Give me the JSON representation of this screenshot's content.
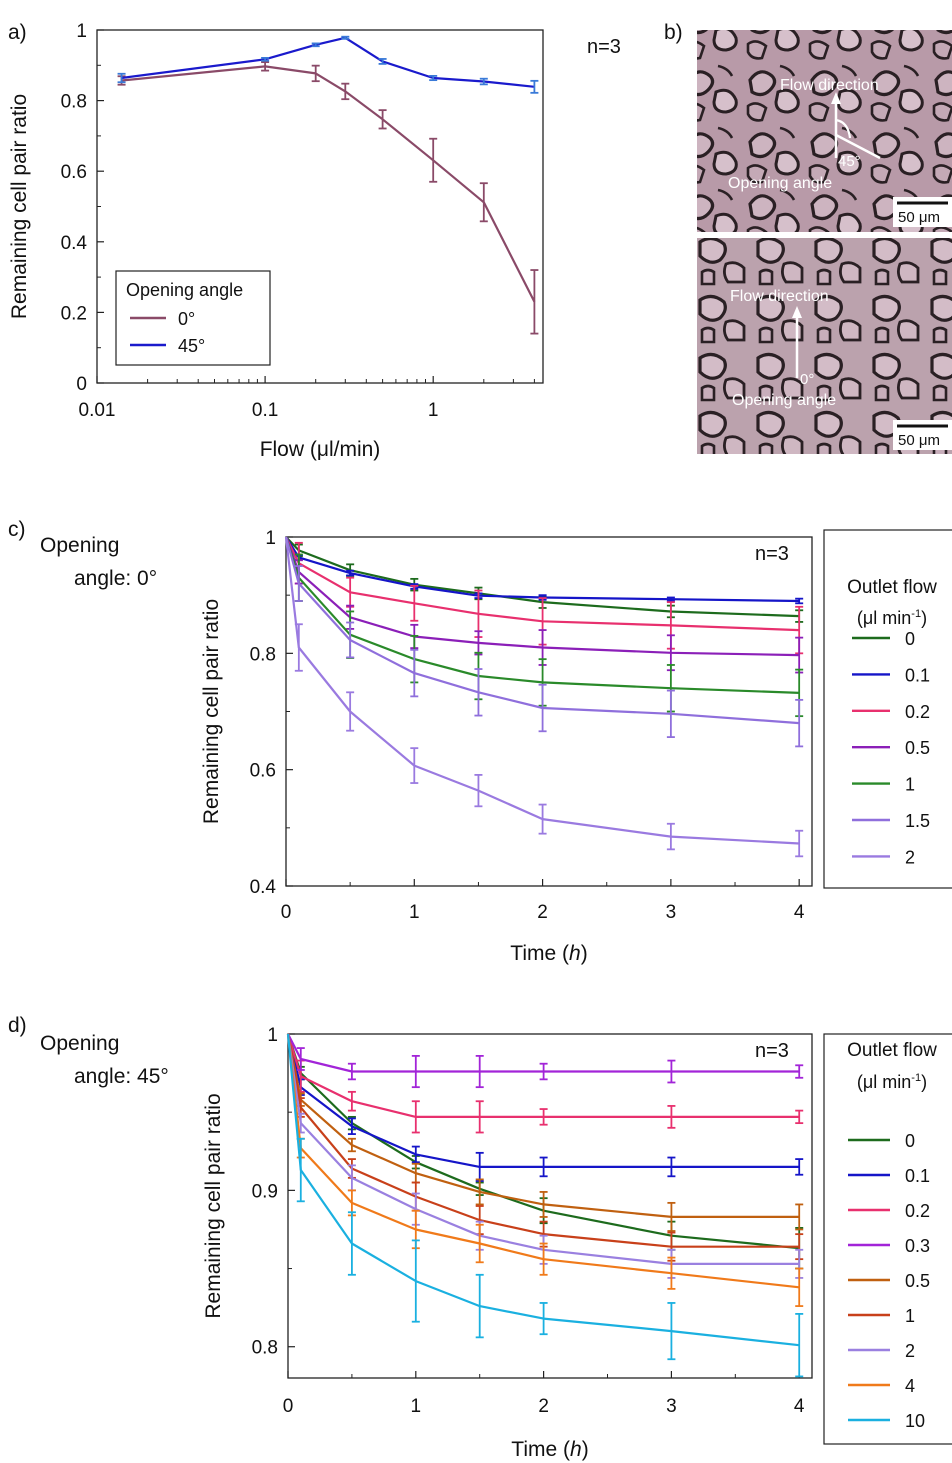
{
  "figure": {
    "panel_labels": [
      "a)",
      "b)",
      "c)",
      "d)"
    ],
    "colors": {
      "a_0deg": "#8a4a68",
      "a_45deg": "#1a1acc",
      "series_0": "#1d6b1d",
      "series_0_1": "#1515c8",
      "series_0_2": "#e8306e",
      "series_0_3": "#a224d8",
      "series_0_5c": "#8b1fb8",
      "series_1c": "#2a8a2a",
      "series_1_5": "#8f6fdc",
      "series_2c": "#9a7ae0",
      "series_0_5d": "#c06010",
      "series_1d": "#c8401a",
      "series_2d": "#9a80e0",
      "series_4": "#f07a1a",
      "series_10": "#1ab0e0",
      "errbar_a45": "#3a7ad8"
    }
  },
  "panel_b": {
    "top": {
      "flow_label": "Flow direction",
      "angle_label": "45°",
      "opening_label": "Opening angle",
      "scale_label": "50 μm"
    },
    "bottom": {
      "flow_label": "Flow direction",
      "angle_label": "0°",
      "opening_label": "Opening angle",
      "scale_label": "50 μm"
    }
  },
  "chart_data": [
    {
      "id": "a",
      "type": "line",
      "xlabel": "Flow (μl/min)",
      "ylabel": "Remaining cell pair ratio",
      "xscale": "log",
      "xlim": [
        0.01,
        4.5
      ],
      "ylim": [
        0,
        1
      ],
      "xticks": [
        0.01,
        0.1,
        1
      ],
      "xtick_labels": [
        "0.01",
        "0.1",
        "1"
      ],
      "yticks": [
        0,
        0.2,
        0.4,
        0.6,
        0.8,
        1
      ],
      "ytick_labels": [
        "0",
        "0.2",
        "0.4",
        "0.6",
        "0.8",
        "1"
      ],
      "annotation": "n=3",
      "legend_title": "Opening angle",
      "legend_position": "bottom-left",
      "series": [
        {
          "name": "0°",
          "x": [
            0.014,
            0.1,
            0.2,
            0.3,
            0.5,
            1,
            2,
            4
          ],
          "y": [
            0.857,
            0.897,
            0.877,
            0.826,
            0.747,
            0.631,
            0.512,
            0.23
          ],
          "err": [
            0.012,
            0.012,
            0.022,
            0.022,
            0.026,
            0.061,
            0.054,
            0.09
          ]
        },
        {
          "name": "45°",
          "x": [
            0.014,
            0.1,
            0.2,
            0.3,
            0.5,
            1,
            2,
            4
          ],
          "y": [
            0.864,
            0.917,
            0.958,
            0.978,
            0.911,
            0.864,
            0.854,
            0.839
          ],
          "err": [
            0.012,
            0.004,
            0.004,
            0.003,
            0.007,
            0.006,
            0.008,
            0.017
          ]
        }
      ]
    },
    {
      "id": "c",
      "type": "line",
      "side_label": "Opening\nangle: 0°",
      "xlabel": "Time",
      "xlabel_unit": "h",
      "ylabel": "Remaining cell pair ratio",
      "xlim": [
        0,
        4.1
      ],
      "ylim": [
        0.4,
        1
      ],
      "xticks": [
        0,
        1,
        2,
        3,
        4
      ],
      "xtick_labels": [
        "0",
        "1",
        "2",
        "3",
        "4"
      ],
      "yticks": [
        0.4,
        0.6,
        0.8,
        1
      ],
      "ytick_labels": [
        "0.4",
        "0.6",
        "0.8",
        "1"
      ],
      "annotation": "n=3",
      "legend_title": "Outlet flow",
      "legend_unit": "μl min",
      "legend_position": "right",
      "x": [
        0,
        0.1,
        0.5,
        1,
        1.5,
        2,
        3,
        4
      ],
      "series": [
        {
          "name": "0",
          "y": [
            1,
            0.977,
            0.943,
            0.918,
            0.903,
            0.888,
            0.872,
            0.864
          ],
          "err": [
            0,
            0.01,
            0.01,
            0.01,
            0.01,
            0.01,
            0.01,
            0.01
          ]
        },
        {
          "name": "0.1",
          "y": [
            1,
            0.965,
            0.938,
            0.915,
            0.899,
            0.896,
            0.893,
            0.89
          ],
          "err": [
            0,
            0.004,
            0.004,
            0.004,
            0.004,
            0.004,
            0.003,
            0.004
          ]
        },
        {
          "name": "0.2",
          "y": [
            1,
            0.955,
            0.905,
            0.886,
            0.868,
            0.855,
            0.848,
            0.84
          ],
          "err": [
            0,
            0.035,
            0.025,
            0.03,
            0.04,
            0.04,
            0.04,
            0.04
          ]
        },
        {
          "name": "0.5",
          "y": [
            1,
            0.94,
            0.862,
            0.829,
            0.818,
            0.81,
            0.801,
            0.797
          ],
          "err": [
            0,
            0.02,
            0.02,
            0.02,
            0.02,
            0.03,
            0.03,
            0.03
          ]
        },
        {
          "name": "1",
          "y": [
            1,
            0.93,
            0.832,
            0.79,
            0.761,
            0.75,
            0.74,
            0.732
          ],
          "err": [
            0,
            0.04,
            0.04,
            0.04,
            0.04,
            0.04,
            0.04,
            0.04
          ]
        },
        {
          "name": "1.5",
          "y": [
            1,
            0.92,
            0.823,
            0.766,
            0.733,
            0.706,
            0.696,
            0.68
          ],
          "err": [
            0,
            0.03,
            0.03,
            0.04,
            0.04,
            0.04,
            0.04,
            0.04
          ]
        },
        {
          "name": "2",
          "y": [
            1,
            0.81,
            0.7,
            0.607,
            0.564,
            0.515,
            0.485,
            0.473
          ],
          "err": [
            0,
            0.04,
            0.033,
            0.03,
            0.027,
            0.025,
            0.022,
            0.022
          ]
        }
      ]
    },
    {
      "id": "d",
      "type": "line",
      "side_label": "Opening\nangle: 45°",
      "xlabel": "Time",
      "xlabel_unit": "h",
      "ylabel": "Remaining cell pair ratio",
      "xlim": [
        0,
        4.1
      ],
      "ylim": [
        0.78,
        1
      ],
      "xticks": [
        0,
        1,
        2,
        3,
        4
      ],
      "xtick_labels": [
        "0",
        "1",
        "2",
        "3",
        "4"
      ],
      "yticks": [
        0.8,
        0.9,
        1
      ],
      "ytick_labels": [
        "0.8",
        "0.9",
        "1"
      ],
      "annotation": "n=3",
      "legend_title": "Outlet flow",
      "legend_unit": "μl min",
      "legend_position": "right",
      "x": [
        0,
        0.1,
        0.5,
        1,
        1.5,
        2,
        3,
        4
      ],
      "series": [
        {
          "name": "0",
          "y": [
            1,
            0.975,
            0.943,
            0.918,
            0.901,
            0.887,
            0.871,
            0.863
          ],
          "err": [
            0,
            0.004,
            0.004,
            0.004,
            0.004,
            0.008,
            0.009,
            0.013
          ]
        },
        {
          "name": "0.1",
          "y": [
            1,
            0.966,
            0.941,
            0.923,
            0.915,
            0.915,
            0.915,
            0.915
          ],
          "err": [
            0,
            0.005,
            0.005,
            0.005,
            0.009,
            0.006,
            0.006,
            0.005
          ]
        },
        {
          "name": "0.2",
          "y": [
            1,
            0.973,
            0.957,
            0.947,
            0.947,
            0.947,
            0.947,
            0.947
          ],
          "err": [
            0,
            0.01,
            0.006,
            0.01,
            0.01,
            0.005,
            0.007,
            0.004
          ]
        },
        {
          "name": "0.3",
          "y": [
            1,
            0.984,
            0.976,
            0.976,
            0.976,
            0.976,
            0.976,
            0.976
          ],
          "err": [
            0,
            0.007,
            0.005,
            0.01,
            0.01,
            0.005,
            0.007,
            0.004
          ]
        },
        {
          "name": "0.5",
          "y": [
            1,
            0.958,
            0.929,
            0.911,
            0.899,
            0.891,
            0.883,
            0.883
          ],
          "err": [
            0,
            0.004,
            0.004,
            0.006,
            0.008,
            0.008,
            0.009,
            0.008
          ]
        },
        {
          "name": "1",
          "y": [
            1,
            0.953,
            0.914,
            0.896,
            0.881,
            0.872,
            0.864,
            0.864
          ],
          "err": [
            0,
            0.006,
            0.006,
            0.009,
            0.009,
            0.008,
            0.009,
            0.008
          ]
        },
        {
          "name": "2",
          "y": [
            1,
            0.943,
            0.908,
            0.888,
            0.871,
            0.862,
            0.853,
            0.853
          ],
          "err": [
            0,
            0.006,
            0.008,
            0.01,
            0.009,
            0.009,
            0.009,
            0.009
          ]
        },
        {
          "name": "4",
          "y": [
            1,
            0.927,
            0.892,
            0.875,
            0.866,
            0.856,
            0.847,
            0.838
          ],
          "err": [
            0,
            0.006,
            0.008,
            0.012,
            0.012,
            0.01,
            0.01,
            0.012
          ]
        },
        {
          "name": "10",
          "y": [
            1,
            0.913,
            0.866,
            0.842,
            0.826,
            0.818,
            0.81,
            0.801
          ],
          "err": [
            0,
            0.02,
            0.02,
            0.026,
            0.02,
            0.01,
            0.018,
            0.02
          ]
        }
      ]
    }
  ]
}
